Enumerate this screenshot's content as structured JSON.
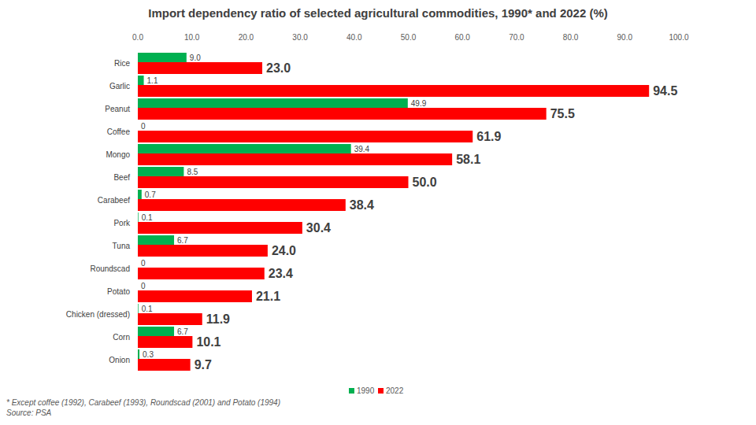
{
  "chart_data": {
    "type": "bar",
    "orientation": "horizontal",
    "title": "Import dependency ratio of selected agricultural commodities, 1990* and 2022 (%)",
    "categories": [
      "Rice",
      "Garlic",
      "Peanut",
      "Coffee",
      "Mongo",
      "Beef",
      "Carabeef",
      "Pork",
      "Tuna",
      "Roundscad",
      "Potato",
      "Chicken (dressed)",
      "Corn",
      "Onion"
    ],
    "series": [
      {
        "name": "1990",
        "color": "#00b050",
        "values": [
          9.0,
          1.1,
          49.9,
          0,
          39.4,
          8.5,
          0.7,
          0.1,
          6.7,
          0,
          0,
          0.1,
          6.7,
          0.3
        ],
        "value_labels": [
          "9.0",
          "1.1",
          "49.9",
          "0",
          "39.4",
          "8.5",
          "0.7",
          "0.1",
          "6.7",
          "0",
          "0",
          "0.1",
          "6.7",
          "0.3"
        ]
      },
      {
        "name": "2022",
        "color": "#ff0000",
        "values": [
          23.0,
          94.5,
          75.5,
          61.9,
          58.1,
          50.0,
          38.4,
          30.4,
          24.0,
          23.4,
          21.1,
          11.9,
          10.1,
          9.7
        ],
        "value_labels": [
          "23.0",
          "94.5",
          "75.5",
          "61.9",
          "58.1",
          "50.0",
          "38.4",
          "30.4",
          "24.0",
          "23.4",
          "21.1",
          "11.9",
          "10.1",
          "9.7"
        ]
      }
    ],
    "xlim": [
      0,
      100
    ],
    "xticks": [
      {
        "value": 0,
        "label": "0.0"
      },
      {
        "value": 10,
        "label": "10.0"
      },
      {
        "value": 20,
        "label": "20.0"
      },
      {
        "value": 30,
        "label": "30.0"
      },
      {
        "value": 40,
        "label": "40.0"
      },
      {
        "value": 50,
        "label": "50.0"
      },
      {
        "value": 60,
        "label": "60.0"
      },
      {
        "value": 70,
        "label": "70.0"
      },
      {
        "value": 80,
        "label": "80.0"
      },
      {
        "value": 90,
        "label": "90.0"
      },
      {
        "value": 100,
        "label": "100.0"
      }
    ],
    "grid": false,
    "legend": "bottom",
    "data_labels": true,
    "annotations": [
      "* Except coffee (1992), Carabeef (1993), Roundscad (2001) and Potato (1994)",
      "Source: PSA"
    ]
  }
}
